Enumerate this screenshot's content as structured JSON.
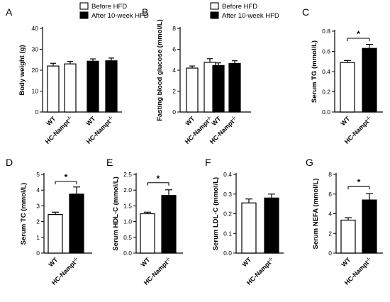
{
  "figure": {
    "sig_marker": "*",
    "legend": {
      "before": "Before HFD",
      "after": "After 10-week HFD"
    },
    "categories": {
      "wt": "WT",
      "hc": "HC-Nampt",
      "hc_sup": "-/-"
    }
  },
  "chart_data": [
    {
      "panel": "A",
      "type": "bar",
      "ylabel": "Body weight (g)",
      "ylim": [
        0,
        40
      ],
      "yticks": [
        0,
        10,
        20,
        30,
        40
      ],
      "categories": [
        "WT",
        "HC-Nampt-/-"
      ],
      "legend": "top-right",
      "series": [
        {
          "name": "Before HFD",
          "fill": "#ffffff",
          "values": [
            22.0,
            23.0
          ],
          "errors": [
            1.3,
            1.2
          ]
        },
        {
          "name": "After 10-week HFD",
          "fill": "#000000",
          "values": [
            24.3,
            24.5
          ],
          "errors": [
            1.1,
            1.3
          ]
        }
      ]
    },
    {
      "panel": "B",
      "type": "bar",
      "ylabel": "Fasting blood glucose (mmol/L)",
      "ylim": [
        0,
        8
      ],
      "yticks": [
        0,
        2,
        4,
        6,
        8
      ],
      "categories": [
        "WT",
        "HC-Nampt-/-"
      ],
      "legend": "top-right",
      "series": [
        {
          "name": "Before HFD",
          "fill": "#ffffff",
          "values": [
            4.2,
            4.75
          ],
          "errors": [
            0.2,
            0.35
          ]
        },
        {
          "name": "After 10-week HFD",
          "fill": "#000000",
          "values": [
            4.45,
            4.65
          ],
          "errors": [
            0.25,
            0.25
          ]
        }
      ]
    },
    {
      "panel": "C",
      "type": "bar",
      "ylabel": "Serum TG (mmol/L)",
      "ylim": [
        0,
        0.8
      ],
      "yticks": [
        0.0,
        0.2,
        0.4,
        0.6,
        0.8
      ],
      "categories": [
        "WT",
        "HC-Nampt-/-"
      ],
      "values": [
        0.49,
        0.63
      ],
      "errors": [
        0.02,
        0.04
      ],
      "significant": true
    },
    {
      "panel": "D",
      "type": "bar",
      "ylabel": "Serum TC (mmol/L)",
      "ylim": [
        0,
        5
      ],
      "yticks": [
        0,
        1,
        2,
        3,
        4,
        5
      ],
      "categories": [
        "WT",
        "HC-Nampt-/-"
      ],
      "values": [
        2.45,
        3.75
      ],
      "errors": [
        0.15,
        0.45
      ],
      "significant": true
    },
    {
      "panel": "E",
      "type": "bar",
      "ylabel": "Serum HDL-C (mmol/L)",
      "ylim": [
        0,
        2.5
      ],
      "yticks": [
        0.0,
        0.5,
        1.0,
        1.5,
        2.0,
        2.5
      ],
      "categories": [
        "WT",
        "HC-Nampt-/-"
      ],
      "values": [
        1.25,
        1.83
      ],
      "errors": [
        0.05,
        0.18
      ],
      "significant": true
    },
    {
      "panel": "F",
      "type": "bar",
      "ylabel": "Serum LDL-C (mmol/L)",
      "ylim": [
        0,
        0.4
      ],
      "yticks": [
        0.0,
        0.1,
        0.2,
        0.3,
        0.4
      ],
      "categories": [
        "WT",
        "HC-Nampt-/-"
      ],
      "values": [
        0.255,
        0.28
      ],
      "errors": [
        0.02,
        0.02
      ],
      "significant": false
    },
    {
      "panel": "G",
      "type": "bar",
      "ylabel": "Serum NEFA (mmol/L)",
      "ylim": [
        0,
        8
      ],
      "yticks": [
        0,
        2,
        4,
        6,
        8
      ],
      "categories": [
        "WT",
        "HC-Nampt-/-"
      ],
      "values": [
        3.35,
        5.4
      ],
      "errors": [
        0.25,
        0.65
      ],
      "significant": true
    }
  ]
}
